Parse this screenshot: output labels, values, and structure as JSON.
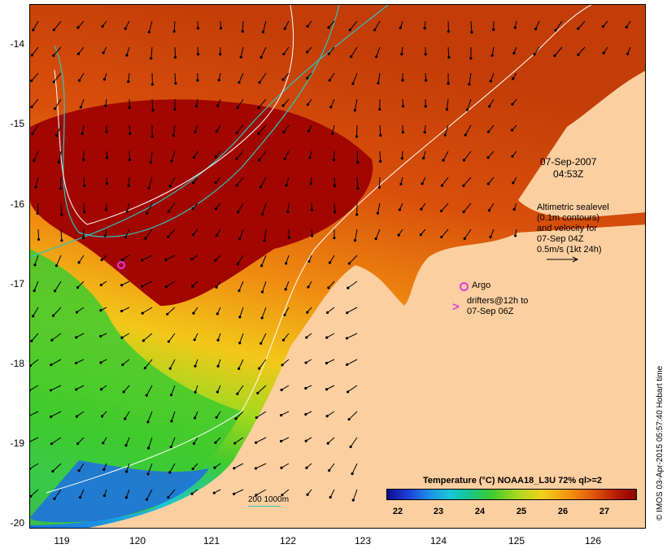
{
  "map": {
    "lat_ticks": [
      "-14",
      "-15",
      "-16",
      "-17",
      "-18",
      "-19",
      "-20"
    ],
    "lon_ticks": [
      "119",
      "120",
      "121",
      "122",
      "123",
      "124",
      "125",
      "126"
    ],
    "lat_range": [
      -20.1,
      -13.55
    ],
    "lon_range": [
      118.6,
      126.7
    ]
  },
  "annotations": {
    "date": "07-Sep-2007",
    "time": "04:53Z",
    "sealevel_lines": [
      "Altimetric sealevel",
      "(0.1m contours)",
      "and velocity for",
      "07-Sep 04Z",
      "0.5m/s (1kt 24h)"
    ],
    "argo": "Argo",
    "drifters_line1": "drifters@12h to",
    "drifters_line2": "07-Sep 06Z"
  },
  "colorbar": {
    "title": "Temperature (°C) NOAA18_L3U 72% ql>=2",
    "ticks": [
      "22",
      "23",
      "24",
      "25",
      "26",
      "27"
    ],
    "range": [
      21.6,
      27.6
    ]
  },
  "contour_legend": "200 1000m",
  "credit": "© IMOS 03-Apr-2015 05:57:40 Hobart time",
  "colors": {
    "land": "#fccfa0",
    "warm": "#a20600",
    "cool": "#1d6de6",
    "contour_200": "#28c8c0",
    "contour_1000": "#ffffff",
    "drifter": "#e23be2"
  }
}
